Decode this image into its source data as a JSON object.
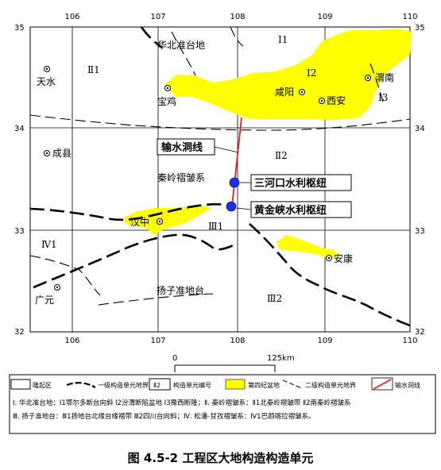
{
  "axes": {
    "lon_ticks_top": [
      "106",
      "107",
      "108",
      "109",
      "110"
    ],
    "lon_ticks_bottom": [
      "106",
      "107",
      "108",
      "109",
      "110"
    ],
    "lat_ticks_left": [
      "35",
      "34",
      "33",
      "32"
    ],
    "lat_ticks_right": [
      "35",
      "34",
      "33",
      "32"
    ]
  },
  "cities": {
    "tianshui": "天水",
    "baoji": "宝鸡",
    "xianyang": "咸阳",
    "xian": "西安",
    "weinan": "渭南",
    "chengxian": "成县",
    "hanzhong": "汉中",
    "ankang": "安康",
    "guangyuan": "广元"
  },
  "regions": {
    "north_china_platform": "华北准台地",
    "qinling_fold_system": "秦岭褶皱系",
    "yangtze_para_platform": "扬子准地台",
    "i1": "Ⅰ1",
    "i2": "Ⅰ2",
    "i3": "Ⅰ3",
    "ii1": "Ⅱ1",
    "ii2": "Ⅱ2",
    "iii1": "Ⅲ1",
    "iii2": "Ⅲ2",
    "iv1": "Ⅳ1"
  },
  "features": {
    "tunnel": "输水洞线",
    "sanhekou": "三河口水利枢纽",
    "huangjinxia": "黄金峡水利枢纽"
  },
  "scale": {
    "zero": "0",
    "end": "125km"
  },
  "legend": {
    "uplift": "隆起区",
    "first_boundary": "一级构造单元地界",
    "unit_code_box": "Ⅱ2",
    "unit_code": "构造单元编号",
    "quaternary": "第四纪盆地",
    "second_boundary": "二级构造单元地界",
    "tunnel": "输水洞线"
  },
  "notes": {
    "line1": "Ⅰ. 华北准台地：Ⅰ1鄂尔多斯台向斜  Ⅰ2汾渭断陷盆地  Ⅰ3豫西断隆；Ⅱ. 秦岭褶皱系：Ⅱ1北秦岭褶皱带  Ⅱ2南秦岭褶皱系",
    "line2": "Ⅲ. 扬子准地台：Ⅲ1扬地台北缘台缘褶带  Ⅲ2四川台向斜；Ⅳ. 松潘-甘孜褶皱系：Ⅳ1巴颜喀拉褶皱系。"
  },
  "caption": "图 4.5-2    工程区大地构造构造单元",
  "colors": {
    "quaternary_fill": "#ffff00",
    "tunnel_line": "#e0201f",
    "marker_fill": "#1d2fe0",
    "boundary": "#000000"
  }
}
